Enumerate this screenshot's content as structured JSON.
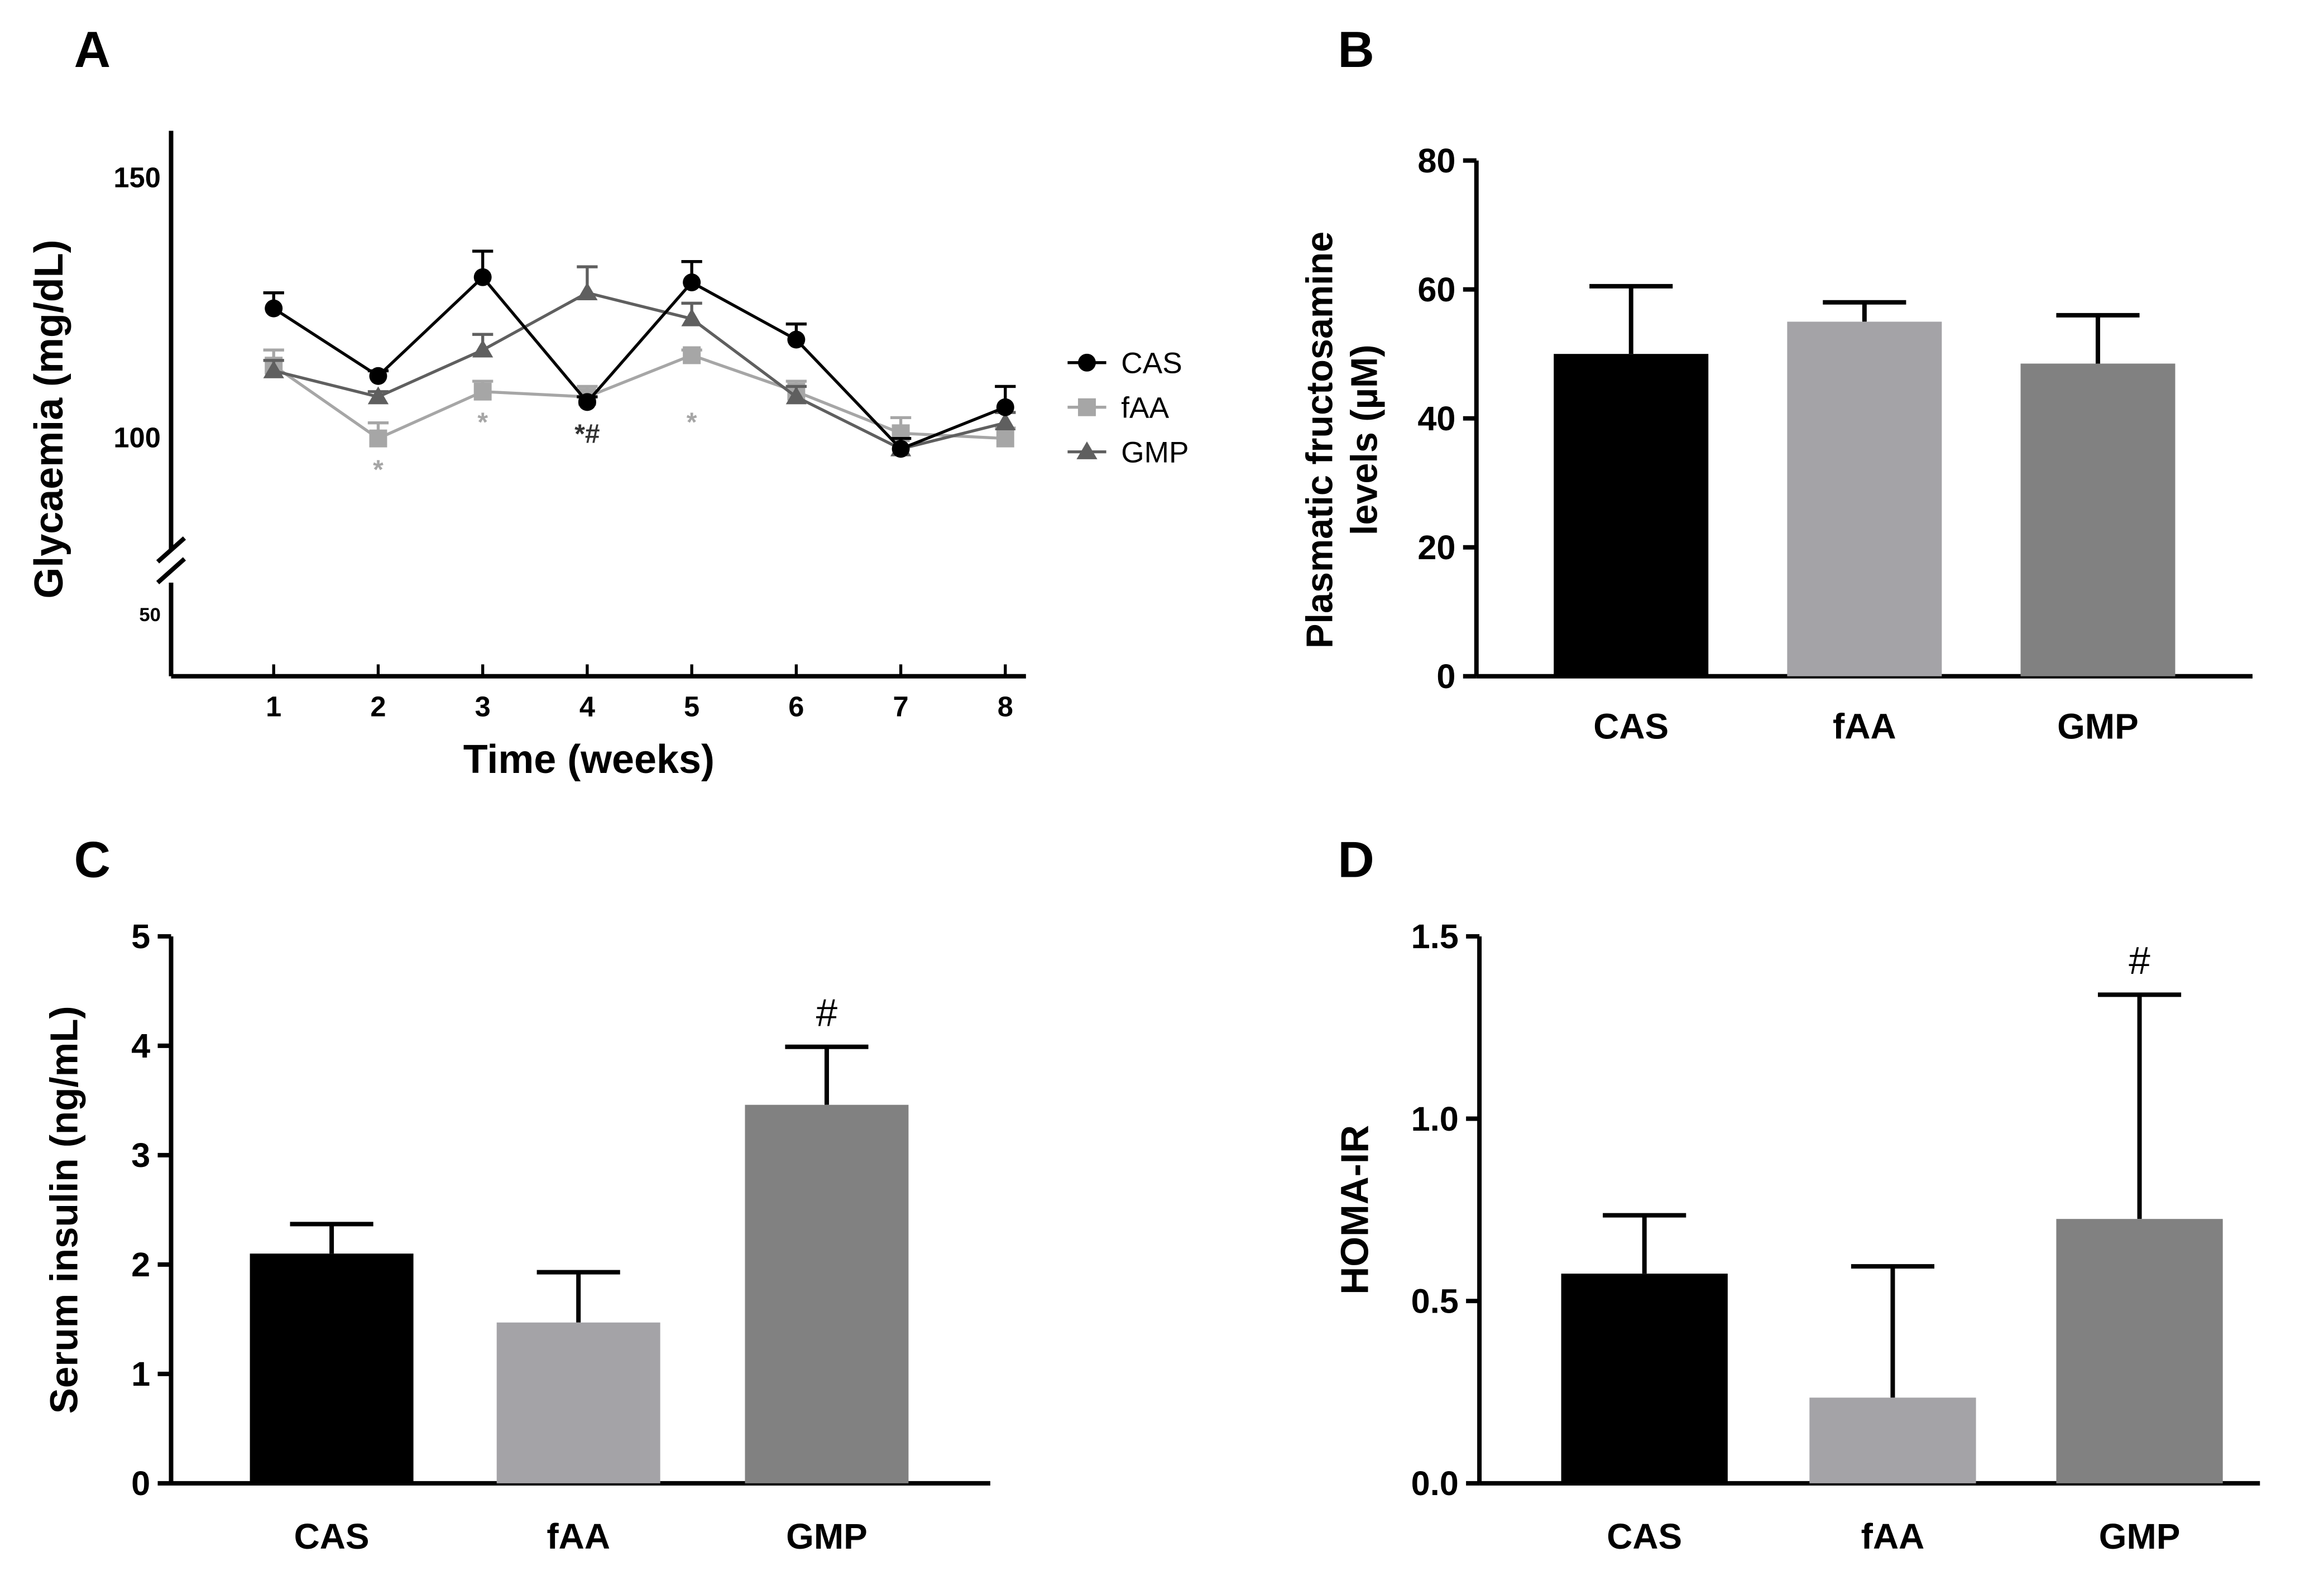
{
  "figure": {
    "panel_labels": [
      "A",
      "B",
      "C",
      "D"
    ]
  },
  "chart_data": [
    {
      "panel": "A",
      "type": "line",
      "title": "",
      "xlabel": "Time (weeks)",
      "ylabel": "Glycaemia (mg/dL)",
      "x": [
        1,
        2,
        3,
        4,
        5,
        6,
        7,
        8
      ],
      "xticks": [
        "1",
        "2",
        "3",
        "4",
        "5",
        "6",
        "7",
        "8"
      ],
      "yticks": [
        {
          "value": 150,
          "label": "150"
        },
        {
          "value": 100,
          "label": "100"
        },
        {
          "value": 50,
          "label": "50"
        }
      ],
      "ylim": [
        78,
        155
      ],
      "axis_break": true,
      "legend": "right",
      "series": [
        {
          "name": "CAS",
          "marker": "circle",
          "color": "#000000",
          "values": [
            125,
            112,
            131,
            107,
            130,
            119,
            98,
            106
          ],
          "errors": [
            3,
            1,
            5,
            1,
            4,
            3,
            2,
            4
          ]
        },
        {
          "name": "fAA",
          "marker": "square",
          "color": "#a6a6a6",
          "values": [
            114,
            100,
            109,
            108,
            116,
            109,
            101,
            100
          ],
          "errors": [
            3,
            3,
            2,
            2,
            1,
            2,
            3,
            2
          ]
        },
        {
          "name": "GMP",
          "marker": "triangle",
          "color": "#5f5f5f",
          "values": [
            113,
            108,
            117,
            128,
            123,
            108,
            98,
            103
          ],
          "errors": [
            2,
            1,
            3,
            5,
            3,
            2,
            2,
            2
          ]
        }
      ],
      "annotations": [
        {
          "x": 2,
          "text": "*",
          "color": "#a6a6a6"
        },
        {
          "x": 3,
          "text": "*",
          "color": "#a6a6a6"
        },
        {
          "x": 4,
          "text": "*#",
          "color": "#333333"
        },
        {
          "x": 5,
          "text": "*",
          "color": "#a6a6a6"
        }
      ]
    },
    {
      "panel": "B",
      "type": "bar",
      "title": "",
      "xlabel": "",
      "ylabel_lines": [
        "Plasmatic fructosamine",
        "levels (µM)"
      ],
      "categories": [
        "CAS",
        "fAA",
        "GMP"
      ],
      "values": [
        50,
        55,
        48.5
      ],
      "errors": [
        10.5,
        3,
        7.5
      ],
      "colors": [
        "#000000",
        "#a4a3a7",
        "#818181"
      ],
      "ylim": [
        0,
        80
      ],
      "yticks": [
        0,
        20,
        40,
        60,
        80
      ],
      "ytick_labels": [
        "0",
        "20",
        "40",
        "60",
        "80"
      ],
      "annotations": []
    },
    {
      "panel": "C",
      "type": "bar",
      "title": "",
      "xlabel": "",
      "ylabel": "Serum insulin (ng/mL)",
      "categories": [
        "CAS",
        "fAA",
        "GMP"
      ],
      "values": [
        2.1,
        1.47,
        3.46
      ],
      "errors": [
        0.27,
        0.46,
        0.53
      ],
      "colors": [
        "#000000",
        "#a4a3a7",
        "#818181"
      ],
      "ylim": [
        0,
        5
      ],
      "yticks": [
        0,
        1,
        2,
        3,
        4,
        5
      ],
      "ytick_labels": [
        "0",
        "1",
        "2",
        "3",
        "4",
        "5"
      ],
      "annotations": [
        {
          "category": "GMP",
          "text": "#"
        }
      ]
    },
    {
      "panel": "D",
      "type": "bar",
      "title": "",
      "xlabel": "",
      "ylabel": "HOMA-IR",
      "categories": [
        "CAS",
        "fAA",
        "GMP"
      ],
      "values": [
        0.575,
        0.235,
        0.725
      ],
      "errors": [
        0.16,
        0.36,
        0.615
      ],
      "colors": [
        "#000000",
        "#a4a3a7",
        "#818181"
      ],
      "ylim": [
        0,
        1.5
      ],
      "yticks": [
        0,
        0.5,
        1.0,
        1.5
      ],
      "ytick_labels": [
        "0.0",
        "0.5",
        "1.0",
        "1.5"
      ],
      "annotations": [
        {
          "category": "GMP",
          "text": "#"
        }
      ]
    }
  ]
}
